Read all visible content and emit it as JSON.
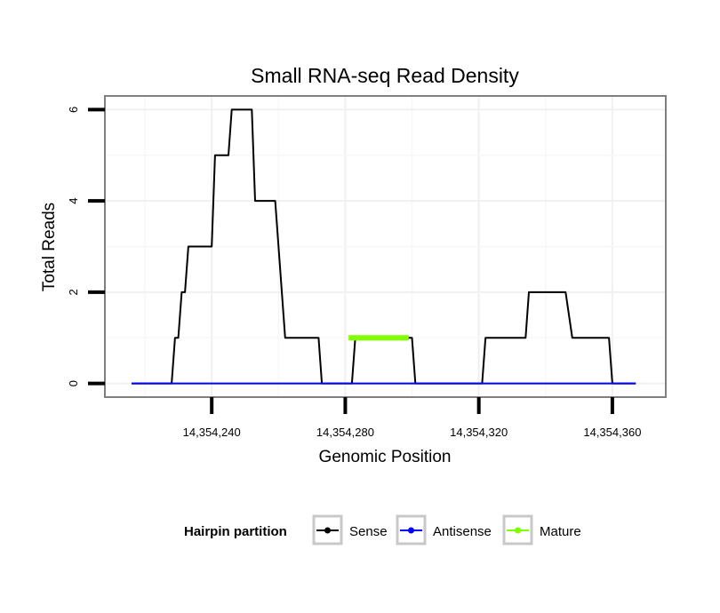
{
  "chart_data": {
    "type": "line",
    "title": "Small RNA-seq Read Density",
    "xlabel": "Genomic Position",
    "ylabel": "Total Reads",
    "xlim": [
      14354208,
      14354376
    ],
    "ylim": [
      -0.3,
      6.3
    ],
    "x_ticks": [
      14354240,
      14354280,
      14354320,
      14354360
    ],
    "x_tick_labels": [
      "14,354,240",
      "14,354,280",
      "14,354,320",
      "14,354,360"
    ],
    "y_ticks": [
      0,
      2,
      4,
      6
    ],
    "y_tick_labels": [
      "0",
      "2",
      "4",
      "6"
    ],
    "grid": true,
    "series": [
      {
        "name": "Sense",
        "color": "#000000",
        "points": [
          [
            14354216,
            0
          ],
          [
            14354228,
            0
          ],
          [
            14354229,
            1
          ],
          [
            14354230,
            1
          ],
          [
            14354231,
            2
          ],
          [
            14354232,
            2
          ],
          [
            14354233,
            3
          ],
          [
            14354240,
            3
          ],
          [
            14354241,
            5
          ],
          [
            14354245,
            5
          ],
          [
            14354246,
            6
          ],
          [
            14354252,
            6
          ],
          [
            14354253,
            4
          ],
          [
            14354259,
            4
          ],
          [
            14354262,
            1
          ],
          [
            14354272,
            1
          ],
          [
            14354273,
            0
          ],
          [
            14354282,
            0
          ],
          [
            14354283,
            1
          ],
          [
            14354300,
            1
          ],
          [
            14354301,
            0
          ],
          [
            14354321,
            0
          ],
          [
            14354322,
            1
          ],
          [
            14354334,
            1
          ],
          [
            14354335,
            2
          ],
          [
            14354346,
            2
          ],
          [
            14354348,
            1
          ],
          [
            14354359,
            1
          ],
          [
            14354360,
            0
          ],
          [
            14354367,
            0
          ]
        ]
      },
      {
        "name": "Antisense",
        "color": "#0000ff",
        "points": [
          [
            14354216,
            0
          ],
          [
            14354367,
            0
          ]
        ]
      },
      {
        "name": "Mature",
        "color": "#7fff00",
        "points": [
          [
            14354281,
            1
          ],
          [
            14354299,
            1
          ]
        ]
      }
    ],
    "legend": {
      "title": "Hairpin partition",
      "position": "bottom",
      "entries": [
        {
          "label": "Sense",
          "color": "#000000"
        },
        {
          "label": "Antisense",
          "color": "#0000ff"
        },
        {
          "label": "Mature",
          "color": "#7fff00"
        }
      ]
    }
  }
}
